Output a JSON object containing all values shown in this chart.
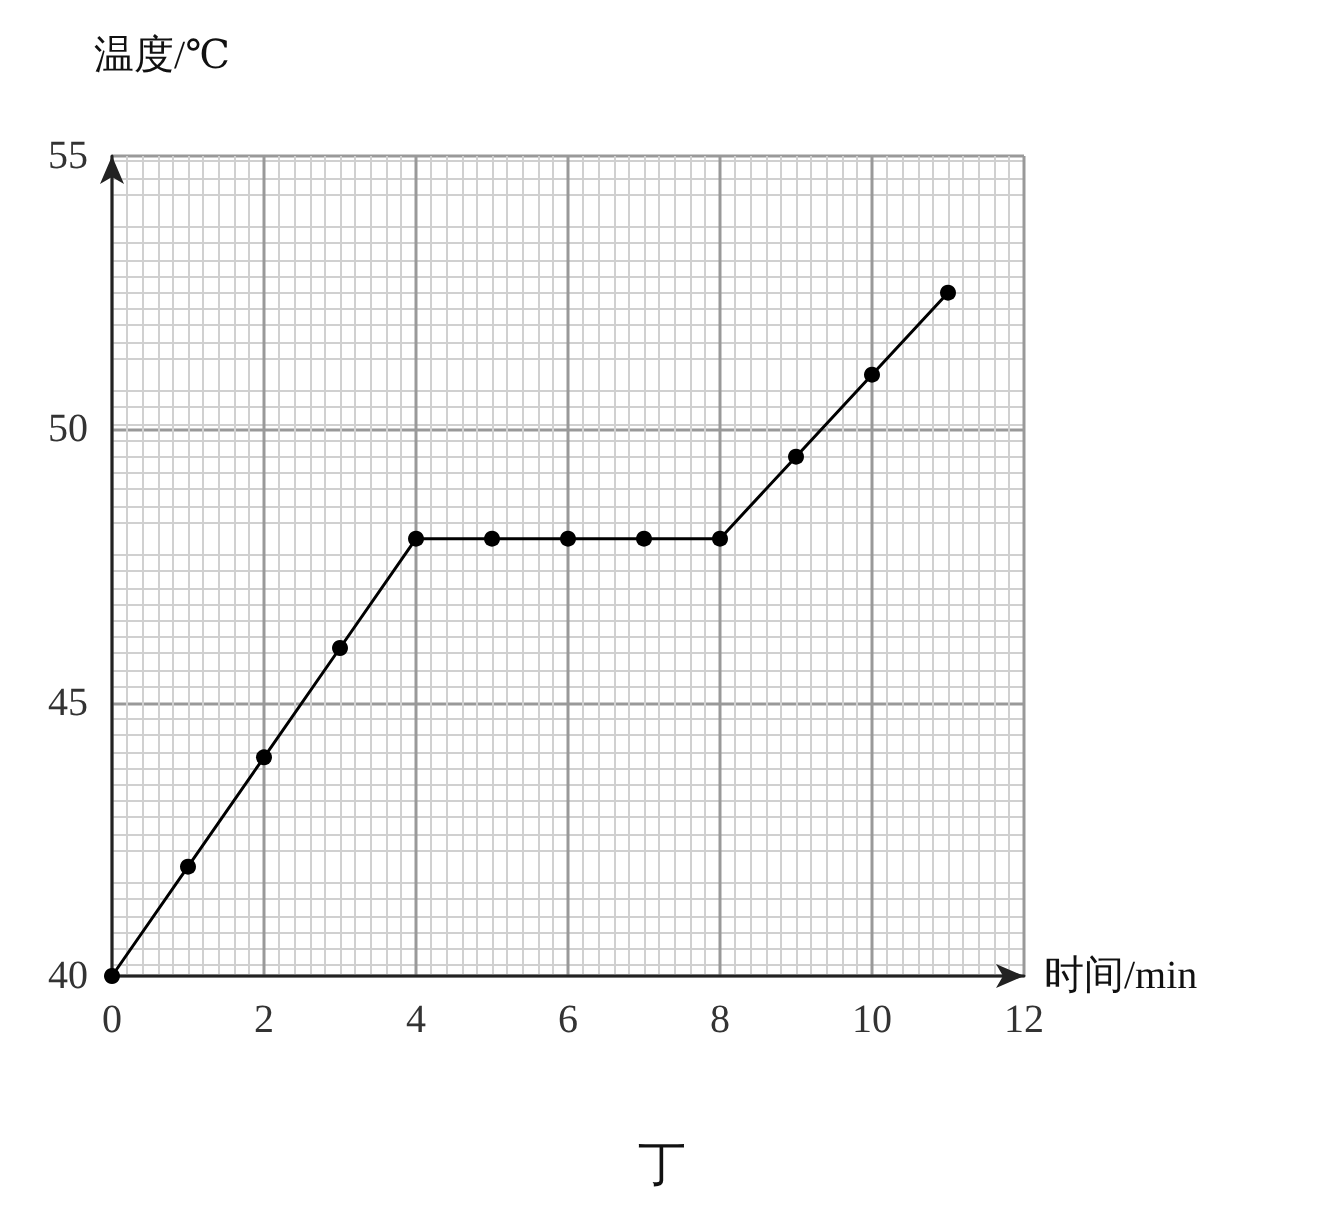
{
  "chart_data": {
    "type": "line",
    "xlabel": "时间/min",
    "ylabel": "温度/℃",
    "x": [
      0,
      1,
      2,
      3,
      4,
      5,
      6,
      7,
      8,
      9,
      10,
      11
    ],
    "series": [
      {
        "color": "#000000",
        "values": [
          40,
          42,
          44,
          46,
          48,
          48,
          48,
          48,
          48,
          49.5,
          51,
          52.5
        ]
      }
    ],
    "xlim": [
      0,
      12
    ],
    "xticks": [
      0,
      2,
      4,
      6,
      8,
      10,
      12
    ],
    "ylim": [
      40,
      55
    ],
    "yticks": [
      40,
      45,
      50,
      55
    ],
    "grid": true,
    "marker": "circle",
    "line_style": "solid",
    "annotations": [
      "丁"
    ]
  }
}
